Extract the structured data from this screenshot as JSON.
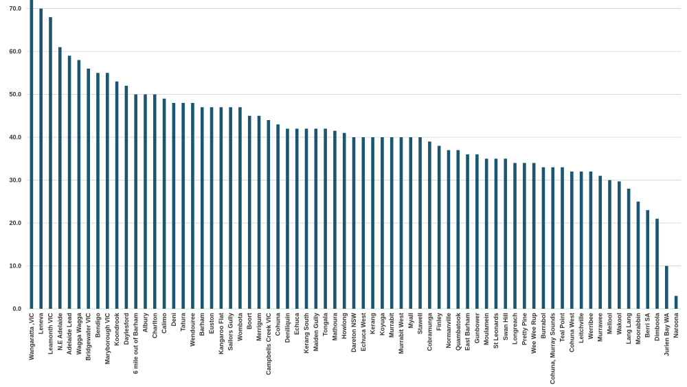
{
  "chart_data": {
    "type": "bar",
    "categories": [
      "Wangaratta ,VIC",
      "Leneva",
      "Leamonth VIC",
      "N.E Adelaide",
      "Adelaide Lead",
      "Wagga Wagga",
      "Bridgewater VIC",
      "Bendigo",
      "Maryborough VIC",
      "Koondrook",
      "Daylesford",
      "6 mile out of Barham",
      "Albury",
      "Charlton",
      "Calimo",
      "Deni",
      "Tatura",
      "Wendouree",
      "Barham",
      "Euston",
      "Kangaroo Flat",
      "Sailors Gully",
      "Wombota",
      "Boort",
      "Merrigum",
      "Campbells Creek VIC",
      "Cohuna",
      "Deniliquin",
      "Echuca",
      "Kerang South",
      "Maiden Gully",
      "Tongala",
      "Mathoura",
      "Howlong",
      "Dareton NSW",
      "Echuca West",
      "Kerang",
      "Koyuga",
      "Murrabit",
      "Murrabit West",
      "Myall",
      "Stawell",
      "Cobramunga",
      "Finley",
      "Normanville",
      "Quambatook",
      "East Barham",
      "Gunbower",
      "Moulamein",
      "St Leonards",
      "Swan Hill",
      "Longreach",
      "Pretty Pine",
      "Wee Wee Rup",
      "Burrabol",
      "Cohuna, Murray Sounds",
      "Teal Point",
      "Cohuna West",
      "Leitchville",
      "Werribee",
      "Murrawee",
      "Mellool",
      "Wakool",
      "Lang Lang",
      "Moorabbin",
      "Berri SA",
      "Dimboola",
      "Jurien Bay WA",
      "Naroona"
    ],
    "values": [
      75,
      70,
      68,
      61,
      59,
      58,
      56,
      55,
      55,
      53,
      52,
      50,
      50,
      50,
      49,
      48,
      48,
      48,
      47,
      47,
      47,
      47,
      47,
      45,
      45,
      44,
      43,
      42,
      42,
      42,
      42,
      42,
      41.5,
      41,
      40,
      40,
      40,
      40,
      40,
      40,
      40,
      40,
      39,
      38,
      37,
      37,
      36,
      36,
      35,
      35,
      35,
      34,
      34,
      34,
      33,
      33,
      33,
      32,
      32,
      32,
      31,
      30,
      29.7,
      28,
      25,
      23,
      21,
      10,
      3
    ],
    "color": "#1b5670",
    "ylim": [
      0,
      72
    ],
    "yticks": [
      {
        "value": 0,
        "label": "0.0"
      },
      {
        "value": 10,
        "label": "10.0"
      },
      {
        "value": 20,
        "label": "20.0"
      },
      {
        "value": 30,
        "label": "30.0"
      },
      {
        "value": 40,
        "label": "40.0"
      },
      {
        "value": 50,
        "label": "50.0"
      },
      {
        "value": 60,
        "label": "60.0"
      },
      {
        "value": 70,
        "label": "70.0"
      }
    ],
    "grid": true
  }
}
